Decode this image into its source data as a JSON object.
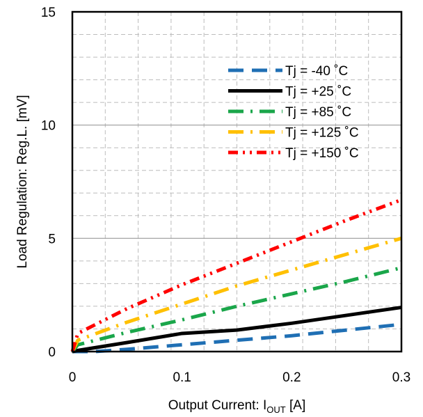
{
  "chart_data": {
    "type": "line",
    "title": "",
    "xlabel": "Output Current: I",
    "xlabel_sub": "OUT",
    "xlabel_suffix": " [A]",
    "ylabel": "Load Regulation: Reg.L. [mV]",
    "xlim": [
      0,
      0.3
    ],
    "ylim": [
      0,
      15
    ],
    "xticks": [
      0,
      0.1,
      0.2,
      0.3
    ],
    "xtick_labels": [
      "0",
      "0.1",
      "0.2",
      "0.3"
    ],
    "yticks": [
      0,
      5,
      10,
      15
    ],
    "ytick_labels": [
      "0",
      "5",
      "10",
      "15"
    ],
    "grid": true,
    "legend_position": "top-right",
    "series": [
      {
        "name": "Tj = -40 ˚C",
        "color": "#1f6fb4",
        "dash": "long-dash",
        "x": [
          0,
          0.02,
          0.05,
          0.1,
          0.15,
          0.2,
          0.25,
          0.3
        ],
        "y": [
          0,
          0.0,
          0.1,
          0.3,
          0.5,
          0.7,
          0.95,
          1.2
        ]
      },
      {
        "name": "Tj = +25 ˚C",
        "color": "#000000",
        "dash": "solid",
        "x": [
          0,
          0.005,
          0.05,
          0.1,
          0.15,
          0.2,
          0.25,
          0.3
        ],
        "y": [
          0,
          0.05,
          0.4,
          0.8,
          0.95,
          1.25,
          1.6,
          1.95
        ]
      },
      {
        "name": "Tj = +85 ˚C",
        "color": "#1aa64a",
        "dash": "dash-dot",
        "x": [
          0,
          0.005,
          0.05,
          0.1,
          0.15,
          0.2,
          0.25,
          0.3
        ],
        "y": [
          0,
          0.3,
          0.85,
          1.4,
          2.0,
          2.55,
          3.1,
          3.7
        ]
      },
      {
        "name": "Tj = +125 ˚C",
        "color": "#ffc000",
        "dash": "dash-dot",
        "x": [
          0,
          0.005,
          0.05,
          0.1,
          0.15,
          0.2,
          0.25,
          0.3
        ],
        "y": [
          0,
          0.5,
          1.3,
          2.1,
          2.9,
          3.6,
          4.3,
          5.0
        ]
      },
      {
        "name": "Tj = +150 ˚C",
        "color": "#ff0000",
        "dash": "dash-dot-dot",
        "x": [
          0,
          0.005,
          0.05,
          0.1,
          0.15,
          0.2,
          0.25,
          0.3
        ],
        "y": [
          0,
          0.8,
          1.9,
          2.95,
          3.9,
          4.85,
          5.8,
          6.7
        ]
      }
    ]
  }
}
